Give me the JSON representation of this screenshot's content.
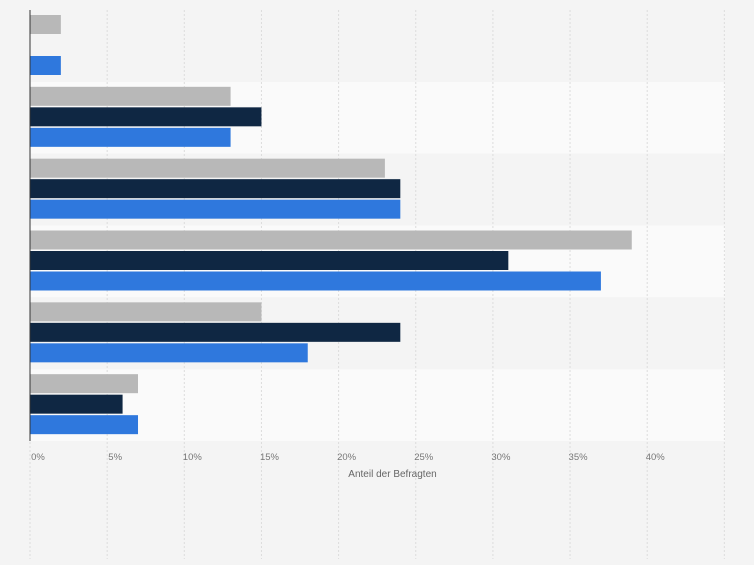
{
  "chart_data": {
    "type": "bar",
    "orientation": "horizontal",
    "categories": [
      "",
      "",
      "",
      "",
      "",
      ""
    ],
    "series": [
      {
        "name": "",
        "color": "#b8b8b8",
        "values": [
          2,
          13,
          23,
          39,
          15,
          7
        ]
      },
      {
        "name": "",
        "color": "#0f2743",
        "values": [
          null,
          15,
          24,
          31,
          24,
          6
        ]
      },
      {
        "name": "",
        "color": "#2f78dd",
        "values": [
          2,
          13,
          24,
          37,
          18,
          7
        ]
      }
    ],
    "xlabel": "Anteil der Befragten",
    "xticks": [
      "0%",
      "5%",
      "10%",
      "15%",
      "20%",
      "25%",
      "30%",
      "35%",
      "40%"
    ],
    "xlim": [
      0,
      45
    ],
    "grid": true,
    "legend": "none",
    "colors": {
      "background": "#f4f4f4",
      "band_dark": "#f4f4f4",
      "band_light": "#fafafa",
      "gridline": "#dcdcdc",
      "axis": "#333333",
      "tick_text": "#777777"
    }
  }
}
